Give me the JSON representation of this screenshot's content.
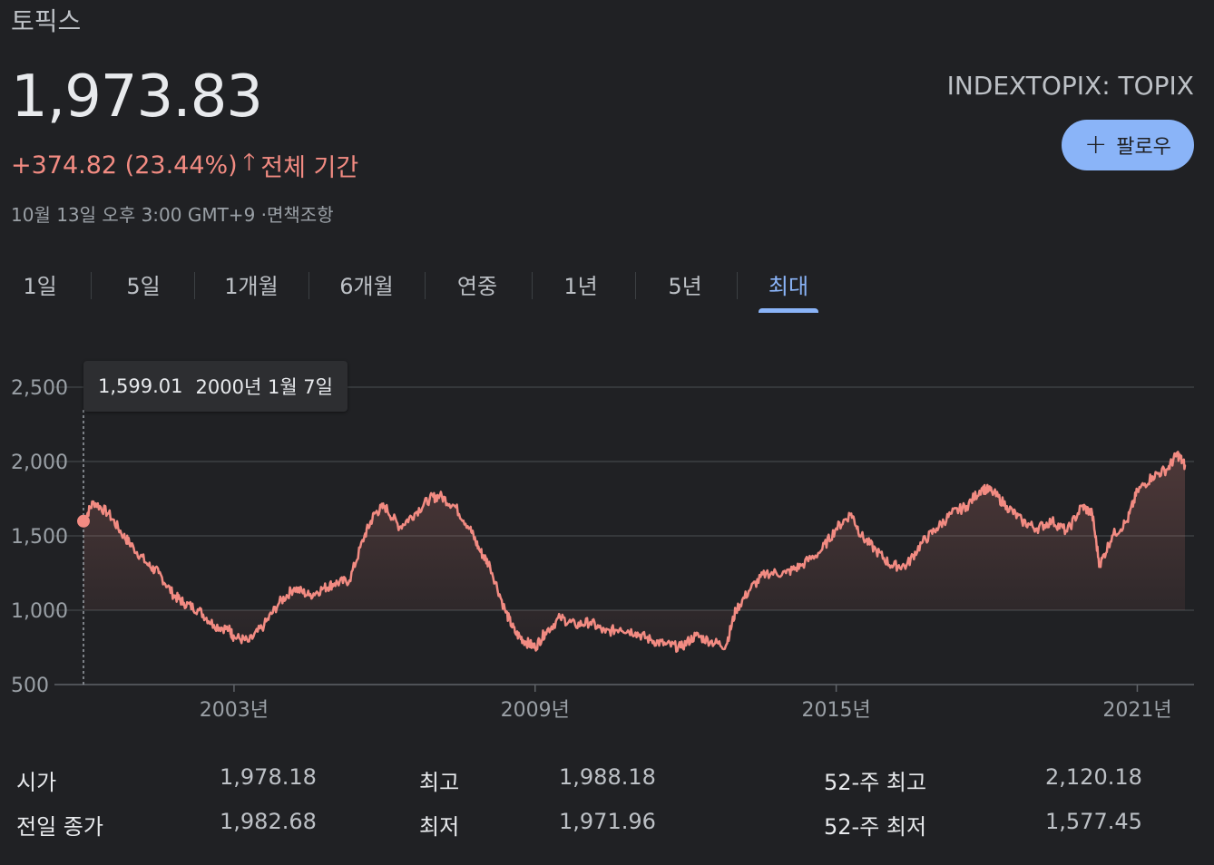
{
  "header": {
    "title": "토픽스",
    "price": "1,973.83",
    "change": "+374.82 (23.44%)",
    "change_arrow_icon": "arrow-up-icon",
    "change_period": "전체 기간",
    "timestamp": "10월 13일 오후 3:00 GMT+9 ·면책조항",
    "ticker": "INDEXTOPIX: TOPIX",
    "follow_label": "팔로우",
    "follow_icon": "plus-icon"
  },
  "colors": {
    "background": "#202124",
    "accent": "#8ab4f8",
    "negative": "#f28b82"
  },
  "tabs": [
    {
      "label": "1일"
    },
    {
      "label": "5일"
    },
    {
      "label": "1개월"
    },
    {
      "label": "6개월"
    },
    {
      "label": "연중"
    },
    {
      "label": "1년"
    },
    {
      "label": "5년"
    },
    {
      "label": "최대",
      "active": true
    }
  ],
  "tooltip": {
    "value": "1,599.01",
    "date": "2000년 1월 7일"
  },
  "chart_data": {
    "type": "area",
    "title": "",
    "xlabel": "",
    "ylabel": "",
    "ylim": [
      500,
      2500
    ],
    "y_ticks": [
      "2,500",
      "2,000",
      "1,500",
      "1,000",
      "500"
    ],
    "y_tick_values": [
      2500,
      2000,
      1500,
      1000,
      500
    ],
    "x_ticks": [
      "2003년",
      "2009년",
      "2015년",
      "2021년"
    ],
    "x_tick_values": [
      2003,
      2009,
      2015,
      2021
    ],
    "grid": true,
    "series": [
      {
        "x": [
          2000.0,
          2000.2,
          2000.5,
          2000.8,
          2001.0,
          2001.3,
          2001.5,
          2001.8,
          2002.0,
          2002.3,
          2002.6,
          2002.9,
          2003.0,
          2003.3,
          2003.6,
          2003.9,
          2004.2,
          2004.5,
          2004.8,
          2005.0,
          2005.3,
          2005.6,
          2005.8,
          2006.0,
          2006.3,
          2006.6,
          2006.9,
          2007.1,
          2007.4,
          2007.7,
          2007.9,
          2008.1,
          2008.4,
          2008.6,
          2008.8,
          2009.0,
          2009.2,
          2009.5,
          2009.8,
          2010.1,
          2010.4,
          2010.7,
          2011.0,
          2011.3,
          2011.6,
          2011.9,
          2012.2,
          2012.5,
          2012.8,
          2013.0,
          2013.3,
          2013.6,
          2014.0,
          2014.3,
          2014.7,
          2015.0,
          2015.3,
          2015.5,
          2015.8,
          2016.1,
          2016.4,
          2016.7,
          2017.0,
          2017.3,
          2017.6,
          2017.9,
          2018.1,
          2018.4,
          2018.7,
          2019.0,
          2019.3,
          2019.6,
          2019.9,
          2020.1,
          2020.25,
          2020.5,
          2020.8,
          2021.0,
          2021.3,
          2021.6,
          2021.8,
          2021.95
        ],
        "values": [
          1599,
          1730,
          1650,
          1500,
          1420,
          1300,
          1250,
          1100,
          1050,
          1000,
          900,
          870,
          820,
          790,
          900,
          1050,
          1150,
          1100,
          1150,
          1180,
          1200,
          1500,
          1650,
          1700,
          1560,
          1650,
          1750,
          1770,
          1700,
          1550,
          1400,
          1300,
          1000,
          850,
          790,
          750,
          850,
          950,
          900,
          920,
          850,
          880,
          850,
          800,
          770,
          750,
          830,
          790,
          760,
          1000,
          1150,
          1250,
          1250,
          1300,
          1400,
          1550,
          1650,
          1500,
          1400,
          1300,
          1300,
          1450,
          1550,
          1650,
          1700,
          1820,
          1800,
          1700,
          1600,
          1550,
          1600,
          1530,
          1700,
          1650,
          1300,
          1500,
          1600,
          1800,
          1900,
          1950,
          2050,
          1973
        ]
      }
    ]
  },
  "stats": {
    "open_label": "시가",
    "open_value": "1,978.18",
    "high_label": "최고",
    "high_value": "1,988.18",
    "high52_label": "52-주 최고",
    "high52_value": "2,120.18",
    "prev_close_label": "전일 종가",
    "prev_close_value": "1,982.68",
    "low_label": "최저",
    "low_value": "1,971.96",
    "low52_label": "52-주 최저",
    "low52_value": "1,577.45"
  }
}
